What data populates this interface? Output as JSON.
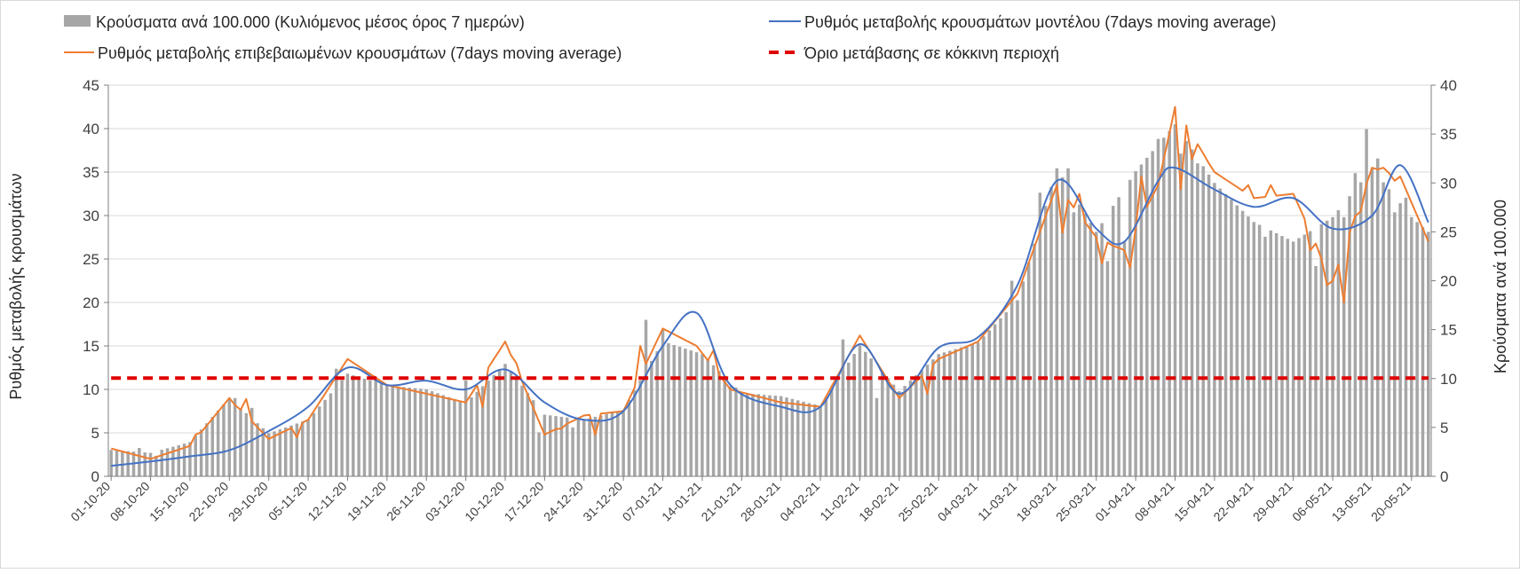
{
  "chart_data": {
    "type": "bar",
    "title": "",
    "legend": {
      "placement": "top",
      "entries": [
        "Κρούσματα ανά 100.000 (Κυλιόμενος μέσος όρος 7 ημερών)",
        "Ρυθμός μεταβολής κρουσμάτων μοντέλου (7days moving average)",
        "Ρυθμός μεταβολής επιβεβαιωμένων κρουσμάτων (7days moving average)",
        "Όριο μετάβασης σε κόκκινη περιοχή"
      ]
    },
    "ylabel_left": "Ρυθμός μεταβολής κρουσμάτων",
    "ylabel_right": "Κρούσματα ανά 100.000",
    "ylim_left": [
      0,
      45
    ],
    "ylim_right": [
      0,
      40
    ],
    "yticks_left": [
      "0",
      "5",
      "10",
      "15",
      "20",
      "25",
      "30",
      "35",
      "40",
      "45"
    ],
    "yticks_right": [
      "0",
      "5",
      "10",
      "15",
      "20",
      "25",
      "30",
      "35",
      "40"
    ],
    "grid": true,
    "x_tick_labels": [
      "01-10-20",
      "08-10-20",
      "15-10-20",
      "22-10-20",
      "29-10-20",
      "05-11-20",
      "12-11-20",
      "19-11-20",
      "26-11-20",
      "03-12-20",
      "10-12-20",
      "17-12-20",
      "24-12-20",
      "31-12-20",
      "07-01-21",
      "14-01-21",
      "21-01-21",
      "28-01-21",
      "04-02-21",
      "11-02-21",
      "18-02-21",
      "25-02-21",
      "04-03-21",
      "11-03-21",
      "18-03-21",
      "25-03-21",
      "01-04-21",
      "08-04-21",
      "15-04-21",
      "22-04-21",
      "29-04-21",
      "06-05-21",
      "13-05-21",
      "20-05-21"
    ],
    "x_start": "01-10-20",
    "n_days": 235,
    "series": [
      {
        "name": "Κρούσματα ανά 100.000 (Κυλιόμενος μέσος όρος 7 ημερών)",
        "kind": "bar",
        "axis": "right",
        "color": "#a6a6a6",
        "anchors": [
          [
            0,
            2.7
          ],
          [
            7,
            2.4
          ],
          [
            14,
            3.5
          ],
          [
            21,
            8.0
          ],
          [
            28,
            4.4
          ],
          [
            35,
            5.8
          ],
          [
            42,
            10.5
          ],
          [
            49,
            9.3
          ],
          [
            56,
            8.9
          ],
          [
            63,
            7.5
          ],
          [
            70,
            11.5
          ],
          [
            77,
            6.3
          ],
          [
            84,
            5.8
          ],
          [
            91,
            6.8
          ],
          [
            98,
            13.8
          ],
          [
            105,
            12.5
          ],
          [
            112,
            8.5
          ],
          [
            119,
            8.2
          ],
          [
            126,
            7.2
          ],
          [
            133,
            13.4
          ],
          [
            140,
            8.7
          ],
          [
            147,
            12.5
          ],
          [
            154,
            13.7
          ],
          [
            161,
            18.0
          ],
          [
            168,
            31.5
          ],
          [
            175,
            25.0
          ],
          [
            182,
            31.2
          ],
          [
            189,
            36.0
          ],
          [
            196,
            30.0
          ],
          [
            203,
            26.0
          ],
          [
            210,
            24.0
          ],
          [
            217,
            26.5
          ],
          [
            224,
            31.5
          ],
          [
            231,
            26.5
          ],
          [
            234,
            25.0
          ]
        ],
        "spikes": [
          [
            5,
            2.9
          ],
          [
            8,
            2.1
          ],
          [
            22,
            8.0
          ],
          [
            25,
            7.0
          ],
          [
            40,
            11.0
          ],
          [
            47,
            10.0
          ],
          [
            63,
            9.8
          ],
          [
            76,
            4.5
          ],
          [
            82,
            5.0
          ],
          [
            95,
            16.0
          ],
          [
            98,
            15.0
          ],
          [
            110,
            9.2
          ],
          [
            115,
            8.4
          ],
          [
            130,
            14.0
          ],
          [
            136,
            8.0
          ],
          [
            160,
            20.0
          ],
          [
            165,
            29.0
          ],
          [
            170,
            31.5
          ],
          [
            171,
            27.0
          ],
          [
            177,
            22.0
          ],
          [
            180,
            24.0
          ],
          [
            186,
            34.5
          ],
          [
            190,
            33.0
          ],
          [
            193,
            32.0
          ],
          [
            205,
            24.5
          ],
          [
            214,
            21.5
          ],
          [
            219,
            26.5
          ],
          [
            221,
            31.0
          ],
          [
            223,
            35.5
          ],
          [
            225,
            32.5
          ],
          [
            228,
            27.0
          ],
          [
            230,
            28.5
          ]
        ]
      },
      {
        "name": "Ρυθμός μεταβολής κρουσμάτων μοντέλου (7days moving average)",
        "kind": "line",
        "axis": "left",
        "color": "#4472c4",
        "anchors": [
          [
            0,
            1.2
          ],
          [
            7,
            1.7
          ],
          [
            14,
            2.3
          ],
          [
            21,
            3.0
          ],
          [
            28,
            5.2
          ],
          [
            35,
            8.0
          ],
          [
            42,
            12.5
          ],
          [
            49,
            10.5
          ],
          [
            56,
            11.0
          ],
          [
            63,
            10.0
          ],
          [
            70,
            12.3
          ],
          [
            77,
            8.5
          ],
          [
            84,
            6.5
          ],
          [
            91,
            7.5
          ],
          [
            98,
            15.0
          ],
          [
            104,
            18.8
          ],
          [
            110,
            10.5
          ],
          [
            119,
            8.0
          ],
          [
            126,
            8.0
          ],
          [
            133,
            15.2
          ],
          [
            140,
            9.5
          ],
          [
            147,
            14.8
          ],
          [
            154,
            16.0
          ],
          [
            161,
            22.0
          ],
          [
            168,
            34.0
          ],
          [
            175,
            28.5
          ],
          [
            180,
            27.0
          ],
          [
            186,
            34.0
          ],
          [
            189,
            35.5
          ],
          [
            196,
            33.0
          ],
          [
            203,
            31.0
          ],
          [
            210,
            32.0
          ],
          [
            217,
            28.5
          ],
          [
            224,
            30.0
          ],
          [
            229,
            35.8
          ],
          [
            234,
            29.2
          ]
        ]
      },
      {
        "name": "Ρυθμός μεταβολής επιβεβαιωμένων κρουσμάτων (7days moving average)",
        "kind": "line",
        "axis": "left",
        "color": "#ed7d31",
        "anchors": [
          [
            0,
            3.2
          ],
          [
            7,
            2.0
          ],
          [
            14,
            3.5
          ],
          [
            21,
            9.0
          ],
          [
            28,
            4.3
          ],
          [
            35,
            6.5
          ],
          [
            42,
            13.5
          ],
          [
            49,
            10.5
          ],
          [
            56,
            9.5
          ],
          [
            63,
            8.5
          ],
          [
            70,
            15.5
          ],
          [
            77,
            4.8
          ],
          [
            84,
            7.0
          ],
          [
            91,
            7.5
          ],
          [
            98,
            17.0
          ],
          [
            104,
            15.0
          ],
          [
            110,
            10.0
          ],
          [
            119,
            8.5
          ],
          [
            126,
            8.0
          ],
          [
            133,
            16.2
          ],
          [
            140,
            9.0
          ],
          [
            147,
            13.5
          ],
          [
            154,
            15.5
          ],
          [
            161,
            21.0
          ],
          [
            168,
            33.5
          ],
          [
            175,
            27.5
          ],
          [
            180,
            26.0
          ],
          [
            186,
            33.5
          ],
          [
            189,
            42.5
          ],
          [
            196,
            35.0
          ],
          [
            203,
            32.0
          ],
          [
            210,
            32.5
          ],
          [
            217,
            22.5
          ],
          [
            224,
            35.5
          ],
          [
            229,
            34.5
          ],
          [
            234,
            27.0
          ]
        ],
        "spikes": [
          [
            15,
            4.8
          ],
          [
            22,
            8.2
          ],
          [
            24,
            8.9
          ],
          [
            33,
            4.5
          ],
          [
            66,
            8.0
          ],
          [
            69,
            14.5
          ],
          [
            72,
            13.0
          ],
          [
            80,
            5.5
          ],
          [
            86,
            4.8
          ],
          [
            94,
            15.0
          ],
          [
            107,
            14.5
          ],
          [
            145,
            9.5
          ],
          [
            169,
            28.0
          ],
          [
            172,
            32.5
          ],
          [
            176,
            24.5
          ],
          [
            178,
            26.5
          ],
          [
            181,
            24.0
          ],
          [
            183,
            34.5
          ],
          [
            190,
            33.0
          ],
          [
            192,
            36.5
          ],
          [
            195,
            36.0
          ],
          [
            202,
            33.5
          ],
          [
            206,
            33.5
          ],
          [
            213,
            26.0
          ],
          [
            215,
            25.0
          ],
          [
            216,
            22.0
          ],
          [
            219,
            20.0
          ],
          [
            222,
            30.5
          ],
          [
            226,
            35.5
          ],
          [
            228,
            34.0
          ]
        ]
      },
      {
        "name": "Όριο μετάβασης σε κόκκινη περιοχή",
        "kind": "line",
        "style": "dashed",
        "axis": "left",
        "color": "#e00000",
        "value": 11.3
      }
    ]
  }
}
